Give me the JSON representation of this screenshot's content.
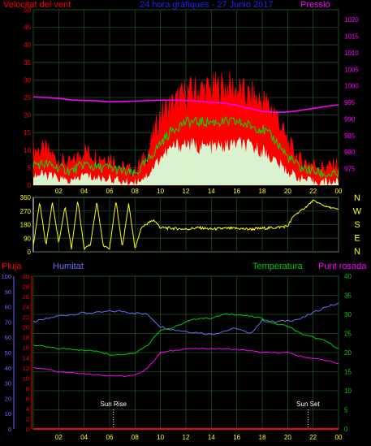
{
  "colors": {
    "background": "#000000",
    "grid": "#1c4f1c",
    "wind_gust": "#ff0000",
    "wind_avg": "#00e000",
    "wind_min": "#d8ffd8",
    "pressure": "#ff00ff",
    "direction": "#ffff00",
    "rain": "#ff0000",
    "humidity": "#6a6aff",
    "temperature": "#00cc00",
    "dewpoint": "#ff00ff",
    "x_ticks": "#ffff00",
    "dir_letters": "#ffff00",
    "sun_markers": "#ffffff"
  },
  "chart_data": [
    {
      "type": "area",
      "id": "wind",
      "title": "24 hora gràfiques - 27 Junio 2017",
      "left_label": "Velocitat del vent",
      "right_label": "Pressió",
      "x_ticks": [
        "02",
        "04",
        "06",
        "08",
        "10",
        "12",
        "14",
        "16",
        "18",
        "20",
        "22",
        "00"
      ],
      "ylim_left": [
        0,
        50
      ],
      "y_ticks_left": [
        0,
        5,
        10,
        15,
        20,
        25,
        30,
        35,
        40,
        45,
        50
      ],
      "ylim_right": [
        970,
        1023
      ],
      "y_ticks_right": [
        975,
        980,
        985,
        990,
        995,
        1000,
        1005,
        1010,
        1015,
        1020
      ],
      "hours": [
        0,
        1,
        2,
        3,
        4,
        5,
        6,
        7,
        8,
        9,
        10,
        11,
        12,
        13,
        14,
        15,
        16,
        17,
        18,
        19,
        20,
        21,
        22,
        23,
        24
      ],
      "series": [
        {
          "name": "gust",
          "values": [
            10,
            10,
            7,
            6,
            10,
            8,
            8,
            5,
            4,
            9,
            20,
            23,
            26,
            27,
            27,
            28,
            27,
            25,
            24,
            21,
            12,
            7,
            6,
            5,
            6
          ]
        },
        {
          "name": "avg",
          "values": [
            6,
            6,
            5,
            4,
            6,
            5,
            5,
            4,
            3,
            7,
            12,
            16,
            18,
            18,
            18,
            18,
            18,
            17,
            16,
            13,
            8,
            5,
            4,
            3,
            3
          ]
        },
        {
          "name": "min",
          "values": [
            3,
            3,
            2,
            1,
            3,
            2,
            2,
            1,
            1,
            3,
            8,
            11,
            12,
            11,
            11,
            11,
            12,
            11,
            10,
            7,
            4,
            2,
            1,
            1,
            1
          ]
        },
        {
          "name": "pressure",
          "values": [
            996.7,
            996.5,
            996.2,
            995.8,
            995.6,
            995.5,
            995.2,
            995.3,
            995.4,
            995.6,
            995.7,
            995.7,
            995.6,
            995.4,
            995.0,
            994.8,
            994.1,
            993.2,
            992.3,
            992.0,
            992.1,
            992.6,
            993.2,
            993.8,
            994.3
          ]
        }
      ]
    },
    {
      "type": "line",
      "id": "direction",
      "ylim": [
        0,
        360
      ],
      "y_ticks": [
        0,
        90,
        180,
        270,
        360
      ],
      "compass_letters": [
        "N",
        "W",
        "S",
        "E",
        "N"
      ],
      "hours": [
        0,
        0.5,
        1,
        1.5,
        2,
        2.5,
        3,
        3.5,
        4,
        4.5,
        5,
        5.5,
        6,
        6.5,
        7,
        7.5,
        8,
        8.5,
        9,
        9.5,
        10,
        11,
        12,
        13,
        14,
        15,
        16,
        17,
        18,
        19,
        20,
        20.5,
        21,
        21.5,
        22,
        22.5,
        23,
        23.5,
        24
      ],
      "series": [
        {
          "name": "direction",
          "values": [
            40,
            330,
            40,
            330,
            60,
            300,
            20,
            340,
            20,
            50,
            330,
            40,
            20,
            340,
            30,
            320,
            20,
            160,
            190,
            210,
            160,
            155,
            150,
            160,
            150,
            155,
            155,
            150,
            155,
            160,
            170,
            240,
            270,
            300,
            340,
            320,
            300,
            290,
            280
          ]
        }
      ]
    },
    {
      "type": "line",
      "id": "climate",
      "labels": {
        "rain": "Pluja",
        "humidity": "Humitat",
        "temperature": "Temperatura",
        "dewpoint": "Punt rosada"
      },
      "x_ticks": [
        "02",
        "04",
        "06",
        "08",
        "10",
        "12",
        "14",
        "16",
        "18",
        "20",
        "22",
        "00"
      ],
      "ylim_rain": [
        0,
        30
      ],
      "y_ticks_rain": [
        0,
        2,
        4,
        6,
        8,
        10,
        12,
        14,
        16,
        18,
        20,
        22,
        24,
        26,
        28,
        30
      ],
      "ylim_humidity": [
        0,
        100
      ],
      "y_ticks_humidity": [
        0,
        10,
        20,
        30,
        40,
        50,
        60,
        70,
        80,
        90,
        100
      ],
      "ylim_temp": [
        0,
        40
      ],
      "y_ticks_temp": [
        0,
        5,
        10,
        15,
        20,
        25,
        30,
        35,
        40
      ],
      "sun_rise_label": "Sun Rise",
      "sun_set_label": "Sun Set",
      "sun_rise_hour": 6.3,
      "sun_set_hour": 21.6,
      "hours": [
        0,
        1,
        2,
        3,
        4,
        5,
        6,
        7,
        8,
        9,
        10,
        11,
        12,
        13,
        14,
        15,
        16,
        17,
        18,
        19,
        20,
        21,
        22,
        23,
        24
      ],
      "series": [
        {
          "name": "humidity",
          "values": [
            70,
            72,
            74,
            75,
            76,
            76,
            77,
            77,
            76,
            75,
            67,
            65,
            64,
            63,
            62,
            64,
            66,
            62,
            71,
            70,
            71,
            72,
            76,
            80,
            82
          ]
        },
        {
          "name": "temperature",
          "values": [
            22,
            21.5,
            21,
            21,
            20.5,
            20.5,
            19.5,
            19.5,
            20,
            22,
            26,
            26.5,
            28,
            29,
            29,
            30,
            30,
            29.5,
            29,
            27.5,
            27,
            25,
            24,
            23,
            21
          ]
        },
        {
          "name": "dewpoint",
          "values": [
            16,
            15.8,
            15,
            14.8,
            14.5,
            14.2,
            14,
            13.8,
            14,
            16,
            20,
            20.5,
            21,
            21,
            21,
            21,
            20.8,
            20.5,
            20,
            20,
            20,
            19,
            18.5,
            18,
            17
          ]
        },
        {
          "name": "rain",
          "values": [
            0,
            0,
            0,
            0,
            0,
            0,
            0,
            0,
            0,
            0,
            0,
            0,
            0,
            0,
            0,
            0,
            0,
            0,
            0,
            0,
            0,
            0,
            0,
            0,
            0
          ]
        }
      ]
    }
  ]
}
